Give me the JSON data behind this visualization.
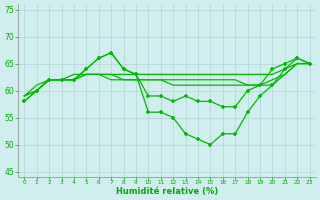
{
  "xlabel": "Humidité relative (%)",
  "xlim": [
    -0.5,
    23.5
  ],
  "ylim": [
    44,
    76
  ],
  "yticks": [
    45,
    50,
    55,
    60,
    65,
    70,
    75
  ],
  "xticks": [
    0,
    1,
    2,
    3,
    4,
    5,
    6,
    7,
    8,
    9,
    10,
    11,
    12,
    13,
    14,
    15,
    16,
    17,
    18,
    19,
    20,
    21,
    22,
    23
  ],
  "bg_color": "#d1eeee",
  "grid_color": "#b0d4d4",
  "line_color": "#00bb00",
  "line1": [
    58,
    60,
    62,
    62,
    62,
    64,
    66,
    67,
    64,
    63,
    59,
    59,
    58,
    59,
    58,
    58,
    57,
    57,
    60,
    61,
    64,
    65,
    66,
    65
  ],
  "line2": [
    59,
    61,
    62,
    62,
    63,
    63,
    63,
    63,
    63,
    63,
    63,
    63,
    63,
    63,
    63,
    63,
    63,
    63,
    63,
    63,
    63,
    64,
    65,
    65
  ],
  "line3": [
    59,
    60,
    62,
    62,
    62,
    63,
    63,
    63,
    62,
    62,
    62,
    62,
    62,
    62,
    62,
    62,
    62,
    62,
    61,
    61,
    62,
    63,
    65,
    65
  ],
  "line4": [
    59,
    60,
    62,
    62,
    62,
    63,
    63,
    62,
    62,
    62,
    62,
    62,
    61,
    61,
    61,
    61,
    61,
    61,
    61,
    61,
    61,
    63,
    65,
    65
  ],
  "line5": [
    58,
    60,
    62,
    62,
    62,
    64,
    66,
    67,
    64,
    63,
    56,
    56,
    55,
    52,
    51,
    50,
    52,
    52,
    56,
    59,
    61,
    64,
    66,
    65
  ],
  "lw": 0.9,
  "markersize": 3.0
}
